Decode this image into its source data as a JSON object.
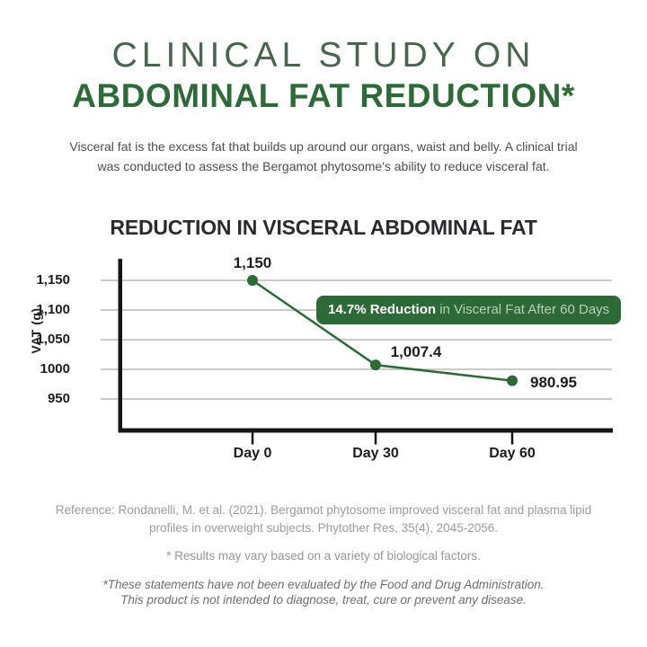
{
  "header": {
    "title_line1": "CLINICAL STUDY ON",
    "title_line2": "ABDOMINAL FAT REDUCTION*",
    "intro_line1": "Visceral fat is the excess fat that builds up around our organs, waist and belly. A clinical trial",
    "intro_line2": "was conducted to assess the Bergamot phytosome's ability to reduce visceral fat."
  },
  "chart_data": {
    "type": "line",
    "title": "REDUCTION IN VISCERAL ABDOMINAL FAT",
    "xlabel": "",
    "ylabel": "VAT (g)",
    "categories": [
      "Day 0",
      "Day 30",
      "Day 60"
    ],
    "values": [
      1150,
      1007.4,
      980.95
    ],
    "value_labels": [
      "1,150",
      "1,007.4",
      "980.95"
    ],
    "y_ticks": [
      {
        "value": 1150,
        "label": "1,150"
      },
      {
        "value": 1100,
        "label": "1,100"
      },
      {
        "value": 1050,
        "label": "1,050"
      },
      {
        "value": 1000,
        "label": "1000"
      },
      {
        "value": 950,
        "label": "950"
      }
    ],
    "ylim": [
      900,
      1185
    ],
    "grid": true,
    "legend": "none",
    "line_color": "#2d6a38",
    "marker_color": "#2d6a38",
    "grid_color": "#cacbcd",
    "axis_color": "#151515",
    "label_color": "#1c1d1f",
    "annotation": {
      "bold": "14.7% Reduction",
      "rest": " in Visceral Fat After 60 Days",
      "bg_color": "#2d6a38",
      "bold_text_color": "#ffffff",
      "rest_text_color": "#b9cfbc"
    }
  },
  "footer": {
    "reference_line1": "Reference: Rondanelli, M. et al. (2021). Bergamot phytosome improved visceral fat and plasma lipid",
    "reference_line2": "profiles in overweight subjects. Phytother Res, 35(4), 2045-2056.",
    "results_note": "* Results may vary based on a variety of biological factors.",
    "fda_line1": "*These statements have not been evaluated by the Food and Drug Administration.",
    "fda_line2": "This product is not intended to diagnose, treat, cure or prevent any disease."
  }
}
